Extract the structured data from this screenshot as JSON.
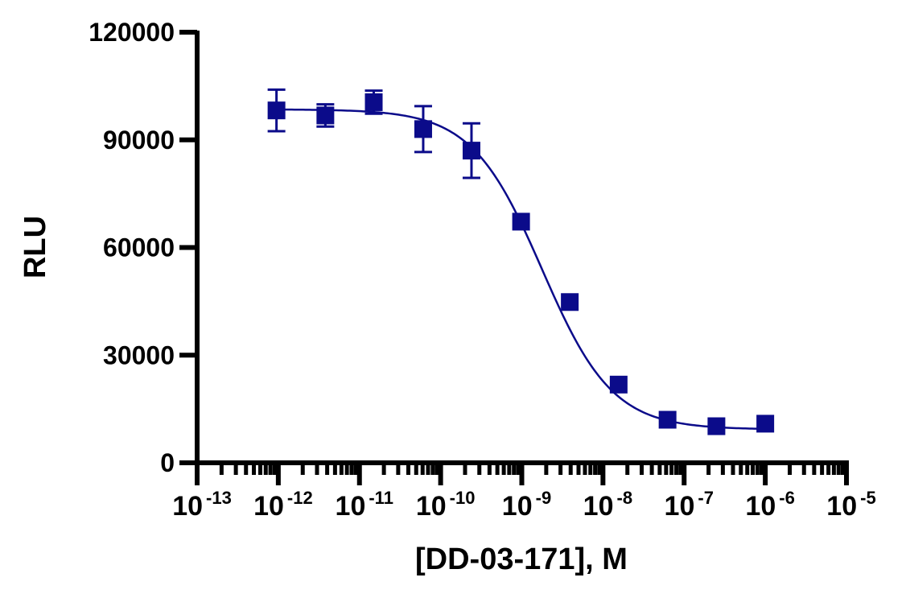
{
  "chart_data": {
    "type": "scatter",
    "xlabel": "[DD-03-171], M",
    "ylabel": "RLU",
    "x_scale": "log",
    "xlim": [
      1e-13,
      1e-05
    ],
    "ylim": [
      0,
      120000
    ],
    "y_ticks": [
      0,
      30000,
      60000,
      90000,
      120000
    ],
    "y_tick_labels": [
      "0",
      "30000",
      "60000",
      "90000",
      "120000"
    ],
    "x_ticks": [
      {
        "base": "10",
        "exp": "-13"
      },
      {
        "base": "10",
        "exp": "-12"
      },
      {
        "base": "10",
        "exp": "-11"
      },
      {
        "base": "10",
        "exp": "-10"
      },
      {
        "base": "10",
        "exp": "-9"
      },
      {
        "base": "10",
        "exp": "-8"
      },
      {
        "base": "10",
        "exp": "-7"
      },
      {
        "base": "10",
        "exp": "-6"
      },
      {
        "base": "10",
        "exp": "-5"
      }
    ],
    "grid": false,
    "color": "#0b0b8a",
    "points": [
      {
        "x": 9.5e-13,
        "y": 98200,
        "err": 5800
      },
      {
        "x": 3.8e-12,
        "y": 96800,
        "err": 3100
      },
      {
        "x": 1.5e-11,
        "y": 100500,
        "err": 3200
      },
      {
        "x": 6.1e-11,
        "y": 93000,
        "err": 6400
      },
      {
        "x": 2.4e-10,
        "y": 87000,
        "err": 7600
      },
      {
        "x": 9.8e-10,
        "y": 67200,
        "err": 0
      },
      {
        "x": 3.9e-09,
        "y": 44800,
        "err": 0
      },
      {
        "x": 1.56e-08,
        "y": 21800,
        "err": 0
      },
      {
        "x": 6.25e-08,
        "y": 12000,
        "err": 0
      },
      {
        "x": 2.5e-07,
        "y": 10200,
        "err": 0
      },
      {
        "x": 1e-06,
        "y": 10900,
        "err": 0
      }
    ],
    "fit": {
      "model": "four-parameter logistic",
      "top": 98500,
      "bottom": 9300,
      "log_ec50": -8.75,
      "hill": 1.0
    }
  }
}
